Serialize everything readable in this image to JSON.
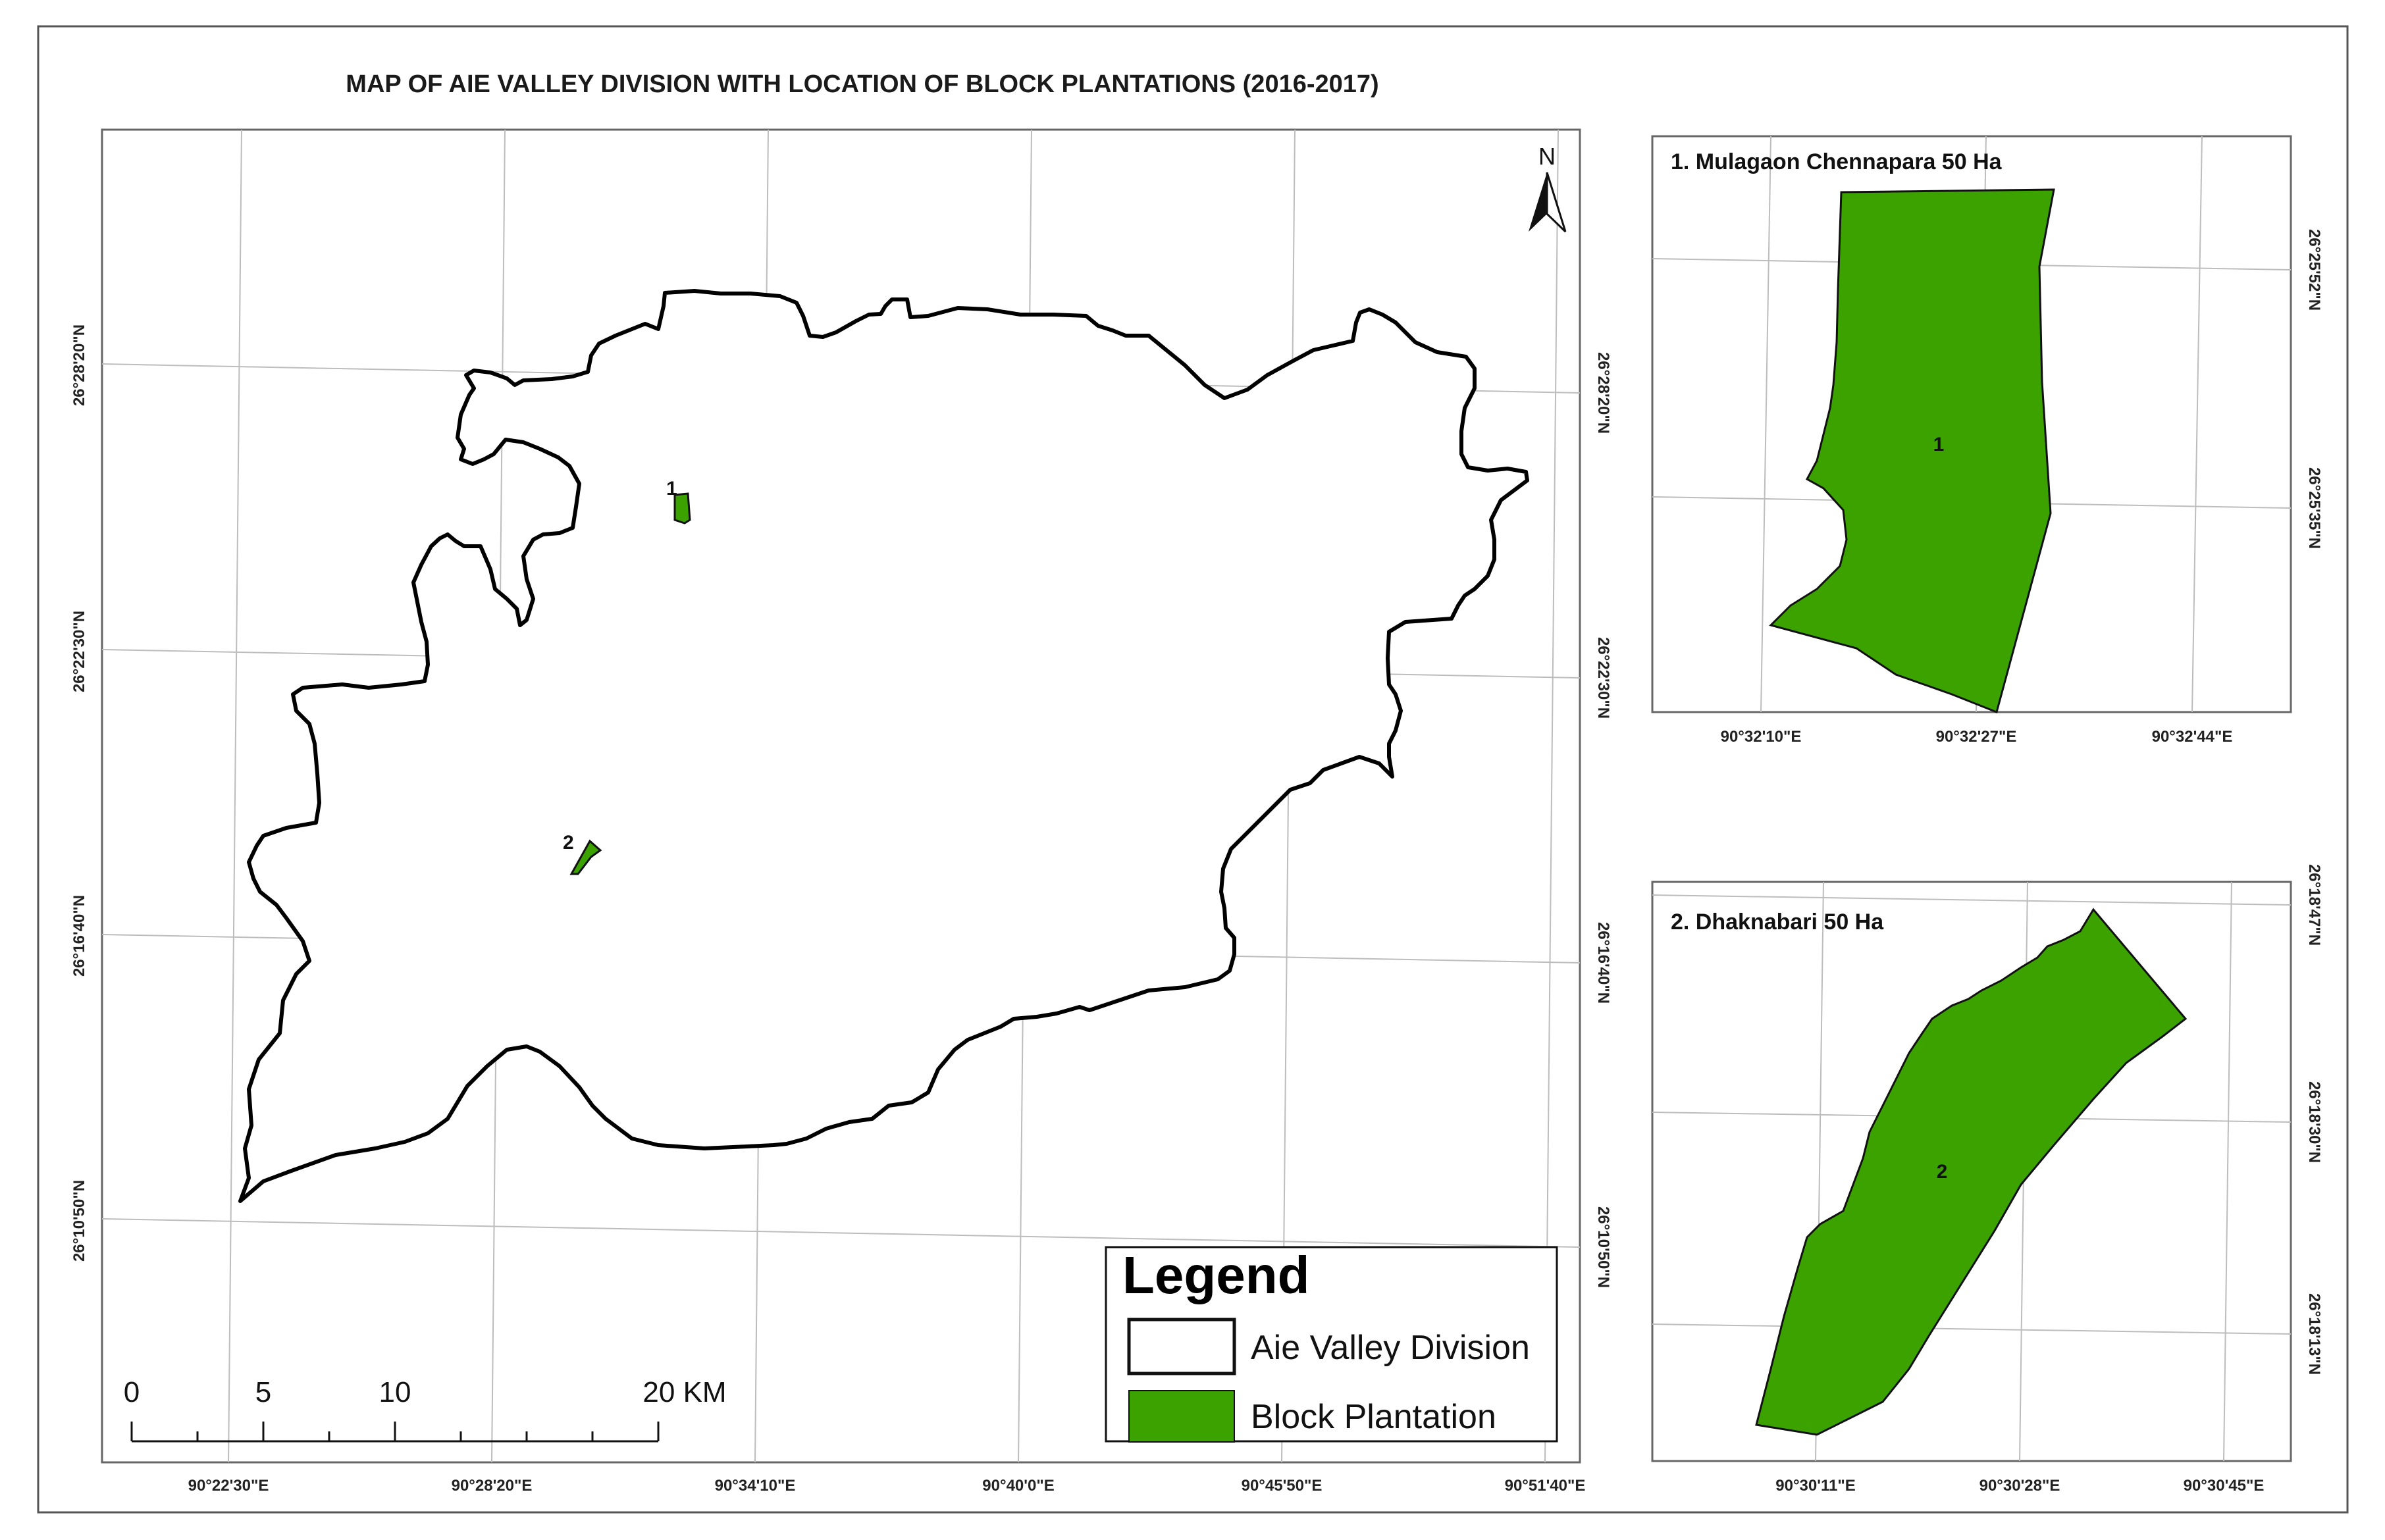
{
  "title": "MAP OF AIE VALLEY DIVISION WITH LOCATION OF BLOCK PLANTATIONS  (2016-2017)",
  "colors": {
    "plantation": "#3ca200",
    "boundary": "#000000",
    "grid": "#bdbdbd",
    "frame": "#555555"
  },
  "main_map": {
    "lon_labels": [
      "90°22'30\"E",
      "90°28'20\"E",
      "90°34'10\"E",
      "90°40'0\"E",
      "90°45'50\"E",
      "90°51'40\"E"
    ],
    "lat_labels_left": [
      "26°28'20\"N",
      "26°22'30\"N",
      "26°16'40\"N",
      "26°10'50\"N"
    ],
    "lat_labels_right": [
      "26°28'20\"N",
      "26°22'30\"N",
      "26°16'40\"N",
      "26°10'50\"N"
    ],
    "markers": [
      "1",
      "2"
    ],
    "north_label": "N"
  },
  "legend": {
    "title": "Legend",
    "items": [
      "Aie Valley Division",
      "Block Plantation"
    ]
  },
  "scale_bar": {
    "labels": [
      "0",
      "5",
      "10",
      "20 KM"
    ]
  },
  "inset1": {
    "title": "1. Mulagaon Chennapara 50 Ha",
    "label": "1",
    "lon_labels": [
      "90°32'10\"E",
      "90°32'27\"E",
      "90°32'44\"E"
    ],
    "lat_labels": [
      "26°25'52\"N",
      "26°25'35\"N"
    ]
  },
  "inset2": {
    "title": "2. Dhaknabari 50 Ha",
    "label": "2",
    "lon_labels": [
      "90°30'11\"E",
      "90°30'28\"E",
      "90°30'45\"E"
    ],
    "lat_labels": [
      "26°18'47\"N",
      "26°18'30\"N",
      "26°18'13\"N"
    ]
  }
}
